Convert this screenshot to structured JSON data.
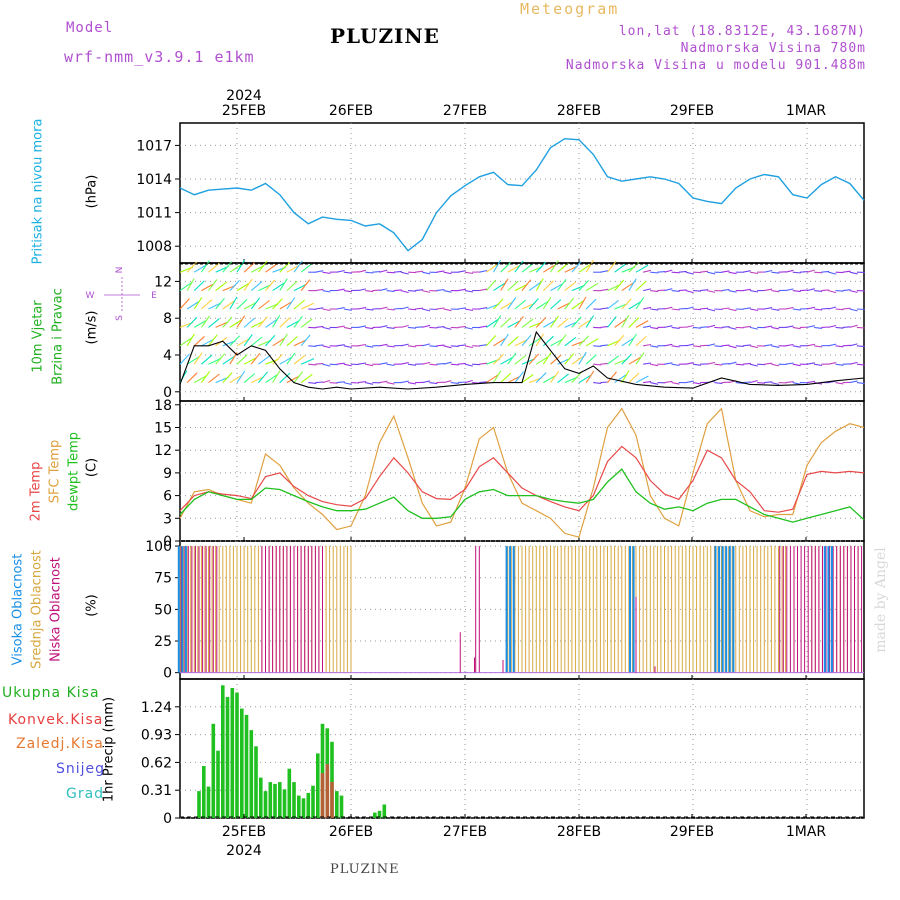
{
  "header": {
    "model_label": "Model",
    "model_name": "wrf-nmm_v3.9.1  e1km",
    "station": "PLUZINE",
    "meteogram": "Meteogram",
    "lonlat": "lon,lat (18.8312E, 43.1687N)",
    "elevation": "Nadmorska Visina 780m",
    "model_elevation": "Nadmorska Visina u modelu 901.488m",
    "watermark": "made by Angel",
    "footer_station": "PLUZINE"
  },
  "axes": {
    "year_top": "2024",
    "year_bottom": "2024",
    "date_ticks": [
      "25FEB",
      "26FEB",
      "27FEB",
      "28FEB",
      "29FEB",
      "1MAR"
    ]
  },
  "panels": {
    "pressure": {
      "label": "Pritisak na nivou mora",
      "unit": "(hPa)",
      "ticks": [
        "1008",
        "1011",
        "1014",
        "1017"
      ]
    },
    "wind": {
      "label1": "10m Vjetar",
      "label2": "Brzina i Pravac",
      "unit": "(m/s)",
      "ticks": [
        "0",
        "4",
        "8",
        "12"
      ],
      "compass": {
        "n": "N",
        "s": "S",
        "e": "E",
        "w": "W"
      }
    },
    "temp": {
      "label1": "2m Temp",
      "label2": "SFC Temp",
      "label3": "dewpt Temp",
      "unit": "(C)",
      "ticks": [
        "0",
        "3",
        "6",
        "9",
        "12",
        "15",
        "18"
      ]
    },
    "cloud": {
      "label1": "Visoka Oblacnost",
      "label2": "Srednja Oblacnost",
      "label3": "Niska Oblacnost",
      "unit": "(%)",
      "ticks": [
        "0",
        "25",
        "50",
        "75",
        "100"
      ]
    },
    "precip": {
      "unit": "1hr Precip (mm)",
      "ticks": [
        "0",
        "0.31",
        "0.62",
        "0.93",
        "1.24"
      ],
      "legend": [
        "Ukupna Kisa",
        "Konvek.Kisa",
        "Zaledj.Kisa",
        "Snijeg",
        "Grad"
      ]
    }
  },
  "colors": {
    "pressure": "#1fa0e0",
    "temp2m": "#e84848",
    "sfc": "#e0a040",
    "dewpt": "#20c020",
    "high_cloud": "#1890e8",
    "mid_cloud": "#d8a840",
    "low_cloud": "#c0107a",
    "rain": "#20c020",
    "conv": "#e84040",
    "frz": "#e87830",
    "snow": "#5050e0",
    "grad": "#30c0c0",
    "label_cyan": "#1ab0e0",
    "label_green": "#20b020",
    "label_purple": "#b050d0"
  },
  "chart_data": [
    {
      "type": "line",
      "ylabel": "(hPa)",
      "ylim": [
        1006.5,
        1019
      ],
      "x_range_days": [
        "24FEB 12Z",
        "1MAR 12Z"
      ],
      "series": [
        {
          "name": "Pritisak na nivou mora",
          "x_hours": [
            0,
            3,
            6,
            9,
            12,
            15,
            18,
            21,
            24,
            27,
            30,
            33,
            36,
            39,
            42,
            45,
            48,
            51,
            54,
            57,
            60,
            63,
            66,
            69,
            72,
            75,
            78,
            81,
            84,
            87,
            90,
            93,
            96,
            99,
            102,
            105,
            108,
            111,
            114,
            117,
            120,
            123,
            126,
            129,
            132,
            135,
            138,
            141,
            144
          ],
          "values": [
            1013.2,
            1012.6,
            1013.0,
            1013.1,
            1013.2,
            1013.0,
            1013.6,
            1012.6,
            1011.0,
            1010.0,
            1010.6,
            1010.4,
            1010.3,
            1009.8,
            1010.0,
            1009.2,
            1007.6,
            1008.6,
            1011.0,
            1012.5,
            1013.4,
            1014.2,
            1014.6,
            1013.5,
            1013.4,
            1014.8,
            1016.8,
            1017.6,
            1017.5,
            1016.2,
            1014.2,
            1013.8,
            1014.0,
            1014.2,
            1014.0,
            1013.6,
            1012.3,
            1012.0,
            1011.8,
            1013.2,
            1014.0,
            1014.4,
            1014.2,
            1012.6,
            1012.3,
            1013.5,
            1014.2,
            1013.6,
            1012.1
          ]
        }
      ]
    },
    {
      "type": "line",
      "ylabel": "(m/s)",
      "ylim": [
        -1,
        14
      ],
      "series": [
        {
          "name": "10m Vjetar",
          "x_hours": [
            0,
            3,
            6,
            9,
            12,
            15,
            18,
            21,
            24,
            27,
            30,
            33,
            36,
            42,
            48,
            54,
            60,
            66,
            72,
            75,
            78,
            81,
            84,
            87,
            90,
            96,
            102,
            108,
            114,
            120,
            126,
            132,
            138,
            144
          ],
          "values": [
            0.8,
            5.0,
            5.0,
            5.5,
            4.0,
            5.0,
            4.5,
            2.5,
            1.0,
            0.5,
            0.3,
            0.5,
            0.3,
            0.5,
            0.3,
            0.5,
            0.8,
            1.0,
            1.0,
            6.5,
            4.5,
            2.5,
            2.0,
            2.8,
            1.5,
            0.8,
            0.5,
            0.4,
            1.5,
            0.8,
            0.7,
            0.8,
            1.2,
            1.5
          ]
        }
      ]
    },
    {
      "type": "line",
      "ylabel": "(C)",
      "ylim": [
        0,
        18.5
      ],
      "series": [
        {
          "name": "2m Temp",
          "x_hours": [
            0,
            3,
            6,
            9,
            12,
            15,
            18,
            21,
            24,
            27,
            30,
            33,
            36,
            39,
            42,
            45,
            48,
            51,
            54,
            57,
            60,
            63,
            66,
            69,
            72,
            75,
            78,
            81,
            84,
            87,
            90,
            93,
            96,
            99,
            102,
            105,
            108,
            111,
            114,
            117,
            120,
            123,
            126,
            129,
            132,
            135,
            138,
            141,
            144
          ],
          "values": [
            4.0,
            6.0,
            6.5,
            6.2,
            6.0,
            5.6,
            8.5,
            9.0,
            7.2,
            6.0,
            5.2,
            4.8,
            4.6,
            5.6,
            8.5,
            11.0,
            9.0,
            6.5,
            5.6,
            5.5,
            6.8,
            9.8,
            11.0,
            9.0,
            7.0,
            6.0,
            5.2,
            4.5,
            4.0,
            6.0,
            10.5,
            12.5,
            11.0,
            8.0,
            6.2,
            5.5,
            8.0,
            12.0,
            11.0,
            8.0,
            6.5,
            4.0,
            3.8,
            4.2,
            8.8,
            9.2,
            9.0,
            9.2,
            9.0
          ]
        },
        {
          "name": "SFC Temp",
          "x_hours": [
            0,
            3,
            6,
            9,
            12,
            15,
            18,
            21,
            24,
            27,
            30,
            33,
            36,
            39,
            42,
            45,
            48,
            51,
            54,
            57,
            60,
            63,
            66,
            69,
            72,
            75,
            78,
            81,
            84,
            87,
            90,
            93,
            96,
            99,
            102,
            105,
            108,
            111,
            114,
            117,
            120,
            123,
            126,
            129,
            132,
            135,
            138,
            141,
            144
          ],
          "values": [
            3.0,
            6.5,
            6.8,
            6.0,
            5.5,
            5.0,
            11.5,
            10.0,
            7.0,
            5.0,
            3.5,
            1.5,
            2.0,
            6.0,
            13.0,
            16.5,
            11.0,
            5.0,
            2.0,
            2.5,
            7.0,
            13.5,
            15.0,
            9.0,
            5.0,
            4.0,
            3.0,
            1.0,
            0.5,
            7.0,
            15.0,
            17.5,
            14.0,
            6.0,
            3.0,
            2.0,
            9.0,
            15.5,
            17.5,
            8.0,
            4.0,
            3.2,
            3.5,
            3.5,
            10.0,
            13.0,
            14.5,
            15.5,
            15.0
          ]
        },
        {
          "name": "dewpt Temp",
          "x_hours": [
            0,
            3,
            6,
            9,
            12,
            15,
            18,
            21,
            24,
            27,
            30,
            33,
            36,
            39,
            42,
            45,
            48,
            51,
            54,
            57,
            60,
            63,
            66,
            69,
            72,
            75,
            78,
            81,
            84,
            87,
            90,
            93,
            96,
            99,
            102,
            105,
            108,
            111,
            114,
            117,
            120,
            123,
            126,
            129,
            132,
            135,
            138,
            141,
            144
          ],
          "values": [
            3.5,
            5.5,
            6.5,
            6.0,
            5.5,
            5.5,
            7.0,
            6.8,
            6.0,
            5.2,
            4.5,
            4.0,
            4.0,
            4.2,
            5.0,
            5.8,
            4.0,
            3.0,
            3.0,
            3.2,
            5.5,
            6.5,
            6.8,
            6.0,
            6.0,
            6.0,
            5.5,
            5.2,
            5.0,
            5.5,
            7.8,
            9.5,
            6.5,
            5.0,
            4.2,
            4.5,
            4.0,
            5.0,
            5.5,
            5.5,
            4.5,
            3.5,
            3.0,
            2.5,
            3.0,
            3.5,
            4.0,
            4.5,
            2.8
          ]
        }
      ]
    },
    {
      "type": "bar",
      "ylabel": "(%)",
      "ylim": [
        0,
        100
      ],
      "series": [
        {
          "name": "Visoka Oblacnost",
          "on_ranges_hours": [
            [
              0,
              2
            ],
            [
              69,
              71
            ],
            [
              95,
              96
            ],
            [
              113,
              117
            ],
            [
              136,
              138
            ]
          ]
        },
        {
          "name": "Srednja Oblacnost",
          "on_ranges_hours": [
            [
              0,
              36
            ],
            [
              69,
              128
            ],
            [
              133,
              143
            ]
          ]
        },
        {
          "name": "Niska Oblacnost",
          "on_ranges_hours": [
            [
              0,
              8
            ],
            [
              17,
              30
            ],
            [
              62,
              63
            ],
            [
              126,
              144
            ]
          ]
        }
      ]
    },
    {
      "type": "bar",
      "ylabel": "1hr Precip (mm)",
      "ylim": [
        0,
        1.55
      ],
      "series": [
        {
          "name": "Ukupna Kisa",
          "x_hours": [
            1,
            2,
            3,
            4,
            5,
            6,
            7,
            8,
            9,
            10,
            11,
            12,
            13,
            14,
            15,
            16,
            17,
            18,
            19,
            20,
            21,
            22,
            23,
            24,
            25,
            26,
            27,
            28,
            29,
            30,
            31,
            32,
            33,
            34,
            35,
            36,
            37,
            38,
            39,
            40,
            41,
            42,
            43,
            44,
            45
          ],
          "values": [
            0,
            0,
            0,
            0.3,
            0.58,
            0.35,
            1.05,
            0.75,
            1.48,
            1.35,
            1.45,
            1.4,
            1.22,
            1.15,
            0.98,
            0.8,
            0.45,
            0.3,
            0.4,
            0.38,
            0.4,
            0.32,
            0.55,
            0.4,
            0.25,
            0.22,
            0.28,
            0.36,
            0.72,
            1.05,
            1.0,
            0.85,
            0.3,
            0.25,
            0,
            0,
            0,
            0,
            0,
            0,
            0.06,
            0.08,
            0.15,
            0,
            0
          ]
        },
        {
          "name": "Konvek.Kisa",
          "x_hours": [
            30,
            31,
            32
          ],
          "values": [
            0.5,
            0.6,
            0.4
          ]
        }
      ]
    }
  ]
}
